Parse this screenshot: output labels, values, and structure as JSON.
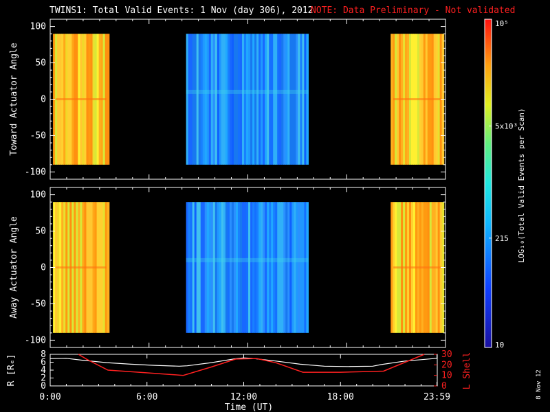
{
  "header": {
    "title": "TWINS1: Total Valid Events:  1 Nov (day 306), 2012",
    "note": "NOTE: Data Preliminary - Not validated"
  },
  "side_date": "8 Nov 12",
  "colors": {
    "note": "#ff2020",
    "frame": "#ffffff",
    "background": "#000000",
    "lshell_line": "#ff2020",
    "r_line": "#ffffff"
  },
  "chart_data": [
    {
      "type": "heatmap",
      "name": "top",
      "ylabel": "Toward Actuator Angle",
      "ylim": [
        -110,
        110
      ],
      "yticks": [
        "100",
        "50",
        "0",
        "-50",
        "-100"
      ],
      "ytick_values": [
        100,
        50,
        0,
        -50,
        -100
      ],
      "xlim": [
        0,
        24
      ],
      "data_y_range": [
        -90,
        90
      ],
      "segments": [
        {
          "start": 0.17,
          "end": 3.58,
          "level": "high"
        },
        {
          "start": 8.25,
          "end": 15.67,
          "level": "low"
        },
        {
          "start": 20.67,
          "end": 23.9,
          "level": "high"
        }
      ]
    },
    {
      "type": "heatmap",
      "name": "bottom",
      "ylabel": "Away Actuator Angle",
      "ylim": [
        -110,
        110
      ],
      "yticks": [
        "100",
        "50",
        "0",
        "-50",
        "-100"
      ],
      "ytick_values": [
        100,
        50,
        0,
        -50,
        -100
      ],
      "xlim": [
        0,
        24
      ],
      "data_y_range": [
        -90,
        90
      ],
      "segments": [
        {
          "start": 0.17,
          "end": 3.58,
          "level": "high"
        },
        {
          "start": 8.25,
          "end": 15.67,
          "level": "low"
        },
        {
          "start": 20.67,
          "end": 23.9,
          "level": "high"
        }
      ]
    },
    {
      "type": "line",
      "name": "orbit",
      "ylabel": "R [Rₑ]",
      "y2label": "L Shell",
      "xlabel": "Time (UT)",
      "xticks": [
        "0:00",
        "6:00",
        "12:00",
        "18:00",
        "23:59"
      ],
      "xtick_values": [
        0,
        6,
        12,
        18,
        23.98
      ],
      "ylim": [
        0,
        8
      ],
      "yticks": [
        "8",
        "6",
        "4",
        "2",
        "0"
      ],
      "ytick_values": [
        8,
        6,
        4,
        2,
        0
      ],
      "y2lim": [
        0,
        30
      ],
      "y2ticks": [
        "30",
        "20",
        "10",
        "0"
      ],
      "y2tick_values": [
        30,
        20,
        10,
        0
      ],
      "series": [
        {
          "axis": "left",
          "x": [
            0,
            1,
            2,
            3.5,
            5,
            6.5,
            8,
            8.5,
            10,
            11.5,
            12,
            12.5,
            14,
            15.5,
            17,
            18.5,
            20,
            20.5,
            22,
            23.98
          ],
          "values": [
            6.9,
            7.0,
            6.5,
            5.9,
            5.5,
            5.2,
            5.0,
            5.1,
            5.9,
            6.9,
            7.1,
            7.0,
            6.3,
            5.5,
            5.0,
            4.9,
            5.0,
            5.4,
            6.3,
            7.0
          ]
        },
        {
          "axis": "right",
          "x": [
            1.75,
            2.3,
            3.58,
            5.5,
            8.25,
            10,
            11.5,
            12.8,
            14,
            15.67,
            18,
            20.67,
            23.2
          ],
          "values": [
            30,
            25,
            15,
            13,
            10,
            18,
            25.5,
            26,
            22,
            13,
            13,
            14,
            30
          ]
        }
      ]
    },
    {
      "type": "colorbar",
      "name": "colorbar",
      "label": "LOG₁₀(Total Valid Events per Scan)",
      "ticks": [
        "10⁵",
        "5x10³",
        "215",
        "10"
      ],
      "tick_values": [
        100000,
        5000,
        215,
        10
      ],
      "scale": "log",
      "range": [
        10,
        100000
      ]
    }
  ]
}
